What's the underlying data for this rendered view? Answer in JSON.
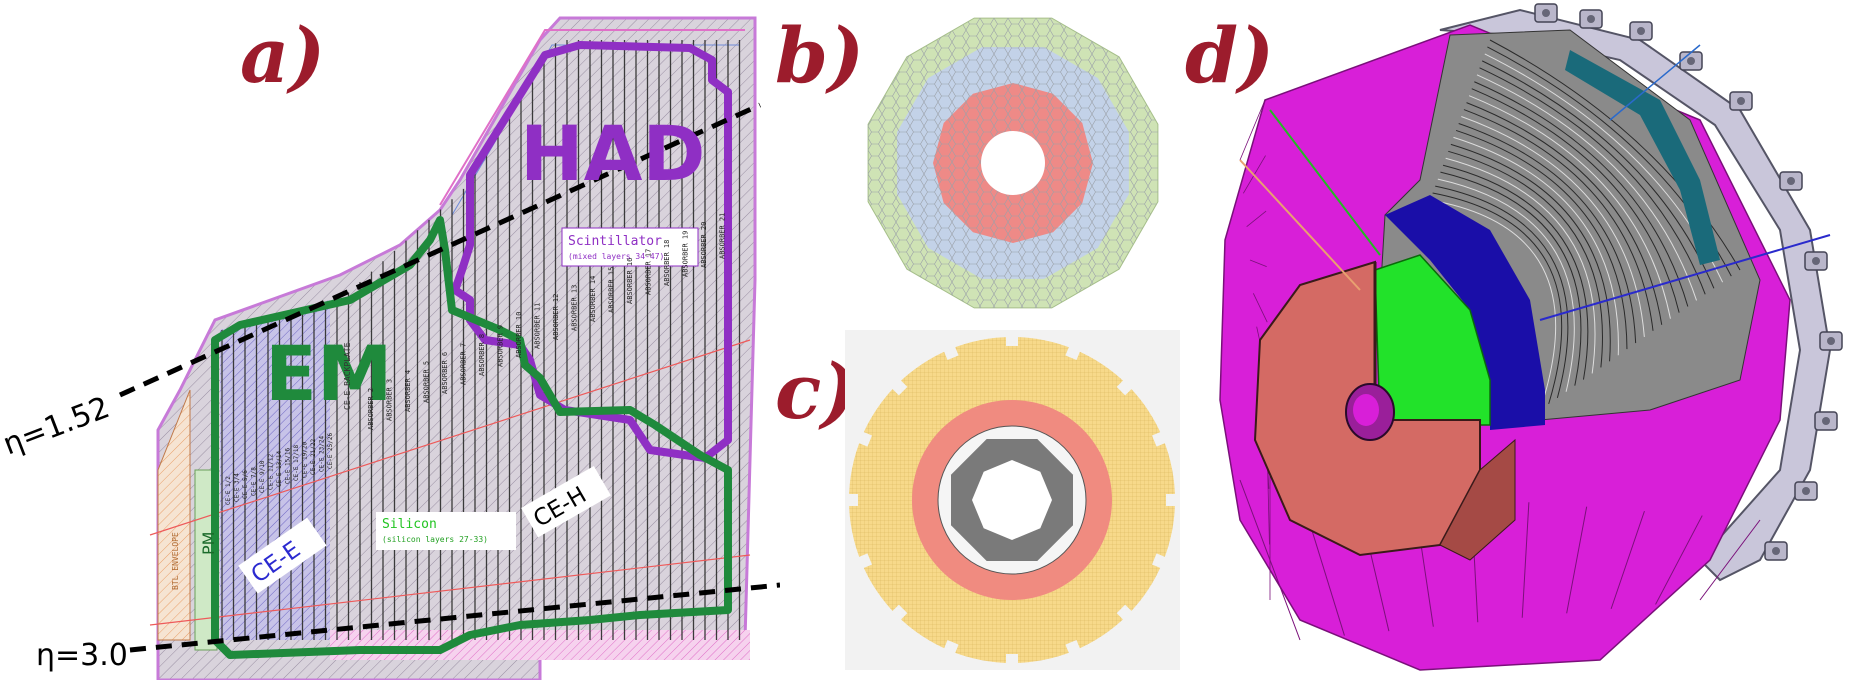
{
  "panels": {
    "a": {
      "letter": "a)",
      "had_label": "HAD",
      "em_label": "EM",
      "scint_title": "Scintillator",
      "scint_sub": "(mixed layers 34-47)",
      "silicon_title": "Silicon",
      "silicon_sub": "(silicon layers 27-33)",
      "ce_h": "CE-H",
      "ce_e": "CE-E",
      "pm": "PM",
      "eta_high": "η=1.52",
      "eta_low": "η=3.0",
      "ce_backplate": "CE-E BACKPLATE",
      "absorbers": [
        "ABSORBER 2",
        "ABSORBER 3",
        "ABSORBER 4",
        "ABSORBER 5",
        "ABSORBER 6",
        "ABSORBER 7",
        "ABSORBER 8",
        "ABSORBER 9",
        "ABSORBER 10",
        "ABSORBER 11",
        "ABSORBER 12",
        "ABSORBER 13",
        "ABSORBER 14",
        "ABSORBER 15",
        "ABSORBER 16",
        "ABSORBER 17",
        "ABSORBER 18",
        "ABSORBER 19",
        "ABSORBER 20",
        "ABSORBER 21"
      ],
      "ce_layers": [
        "CE-E 1/2",
        "CE-E 3/4",
        "CE-E 5/6",
        "CE-E 7/8",
        "CE-E 9/10",
        "CE-E 11/12",
        "CE-E 13/14",
        "CE-E 15/16",
        "CE-E 17/18",
        "CE-E 19/20",
        "CE-E 21/22",
        "CE-E 23/24",
        "CE-E 25/26"
      ],
      "envelope": "BTL ENVELOPE"
    },
    "b": {
      "letter": "b)"
    },
    "c": {
      "letter": "c)"
    },
    "d": {
      "letter": "d)"
    }
  },
  "colors": {
    "letter": "#9c1c2c",
    "had": "#8f2fc4",
    "em": "#1f8a3c",
    "hex_red": "#ee8a87",
    "hex_blue": "#c3d2e8",
    "hex_green": "#cfe3b5",
    "annulus_yellow": "#f7d98a",
    "annulus_red": "#f08b80",
    "octagon_gray": "#7a7a7a",
    "magenta": "#d81fd8",
    "salmon": "#d46a64",
    "lime": "#22e22a",
    "navy": "#1a0ea8",
    "steel": "#6a6a6a"
  }
}
